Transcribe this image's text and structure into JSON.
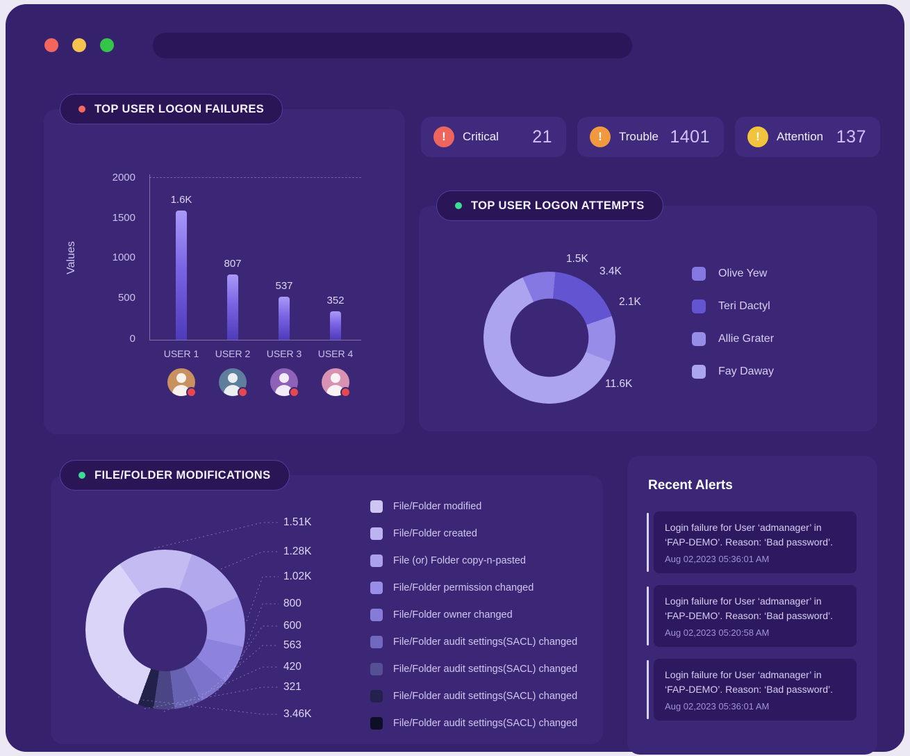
{
  "window": {
    "url_text": ""
  },
  "stats": [
    {
      "label": "Critical",
      "value": "21",
      "color": "#ee655f"
    },
    {
      "label": "Trouble",
      "value": "1401",
      "color": "#f0993e"
    },
    {
      "label": "Attention",
      "value": "137",
      "color": "#f2c33d"
    }
  ],
  "logon_failures": {
    "title": "TOP USER LOGON FAILURES",
    "dot_color": "#f4685e",
    "ylabel": "Values",
    "yticks": [
      "2000",
      "1500",
      "1000",
      "500",
      "0"
    ],
    "chart_data": {
      "type": "bar",
      "categories": [
        "USER 1",
        "USER 2",
        "USER 3",
        "USER 4"
      ],
      "values": [
        1600,
        807,
        537,
        352
      ],
      "value_labels": [
        "1.6K",
        "807",
        "537",
        "352"
      ],
      "ylabel": "Values",
      "ylim": [
        0,
        2000
      ]
    },
    "avatar_colors": [
      "#c99060",
      "#5f7d9d",
      "#8f62b9",
      "#d893b3"
    ]
  },
  "logon_attempts": {
    "title": "TOP USER LOGON ATTEMPTS",
    "dot_color": "#3cdc96",
    "chart_data": {
      "type": "donut",
      "series": [
        {
          "name": "Olive Yew",
          "value": 1500,
          "label": "1.5K",
          "color": "#8678e2"
        },
        {
          "name": "Teri Dactyl",
          "value": 3400,
          "label": "3.4K",
          "color": "#6355d2"
        },
        {
          "name": "Allie Grater",
          "value": 2100,
          "label": "2.1K",
          "color": "#978ce8"
        },
        {
          "name": "Fay Daway",
          "value": 11600,
          "label": "11.6K",
          "color": "#aca4ee"
        }
      ]
    }
  },
  "file_modifications": {
    "title": "FILE/FOLDER MODIFICATIONS",
    "dot_color": "#3cdc96",
    "chart_data": {
      "type": "donut",
      "slices": [
        {
          "label": "1.51K",
          "value": 1510,
          "color": "#c3bbf1"
        },
        {
          "label": "1.28K",
          "value": 1280,
          "color": "#b1a8ee"
        },
        {
          "label": "1.02K",
          "value": 1020,
          "color": "#9f95e8"
        },
        {
          "label": "800",
          "value": 800,
          "color": "#8d83de"
        },
        {
          "label": "600",
          "value": 600,
          "color": "#7b73cc"
        },
        {
          "label": "563",
          "value": 563,
          "color": "#6862b2"
        },
        {
          "label": "420",
          "value": 420,
          "color": "#4a4685"
        },
        {
          "label": "321",
          "value": 321,
          "color": "#21214a"
        },
        {
          "label": "3.46K",
          "value": 3460,
          "color": "#d9d4f8"
        }
      ]
    },
    "legend": [
      {
        "label": "File/Folder modified",
        "color": "#cdc6f3"
      },
      {
        "label": "File/Folder created",
        "color": "#bcb3f0"
      },
      {
        "label": "File (or) Folder copy-n-pasted",
        "color": "#aaa0ec"
      },
      {
        "label": "File/Folder permission changed",
        "color": "#988ee5"
      },
      {
        "label": "File/Folder owner changed",
        "color": "#867cd8"
      },
      {
        "label": "File/Folder audit settings(SACL) changed",
        "color": "#7169bf"
      },
      {
        "label": "File/Folder audit settings(SACL) changed",
        "color": "#555093"
      },
      {
        "label": "File/Folder audit settings(SACL) changed",
        "color": "#23224e"
      },
      {
        "label": "File/Folder audit settings(SACL) changed",
        "color": "#0e0e26"
      }
    ]
  },
  "recent_alerts": {
    "title": "Recent Alerts",
    "alerts": [
      {
        "message": "Login failure for User ‘admanager’ in ‘FAP-DEMO’. Reason: ‘Bad password’.",
        "timestamp": "Aug 02,2023 05:36:01 AM"
      },
      {
        "message": "Login failure for User ‘admanager’ in ‘FAP-DEMO’. Reason: ‘Bad password’.",
        "timestamp": "Aug 02,2023 05:20:58 AM"
      },
      {
        "message": "Login failure for User ‘admanager’ in ‘FAP-DEMO’. Reason: ‘Bad password’.",
        "timestamp": "Aug 02,2023 05:36:01 AM"
      }
    ]
  }
}
